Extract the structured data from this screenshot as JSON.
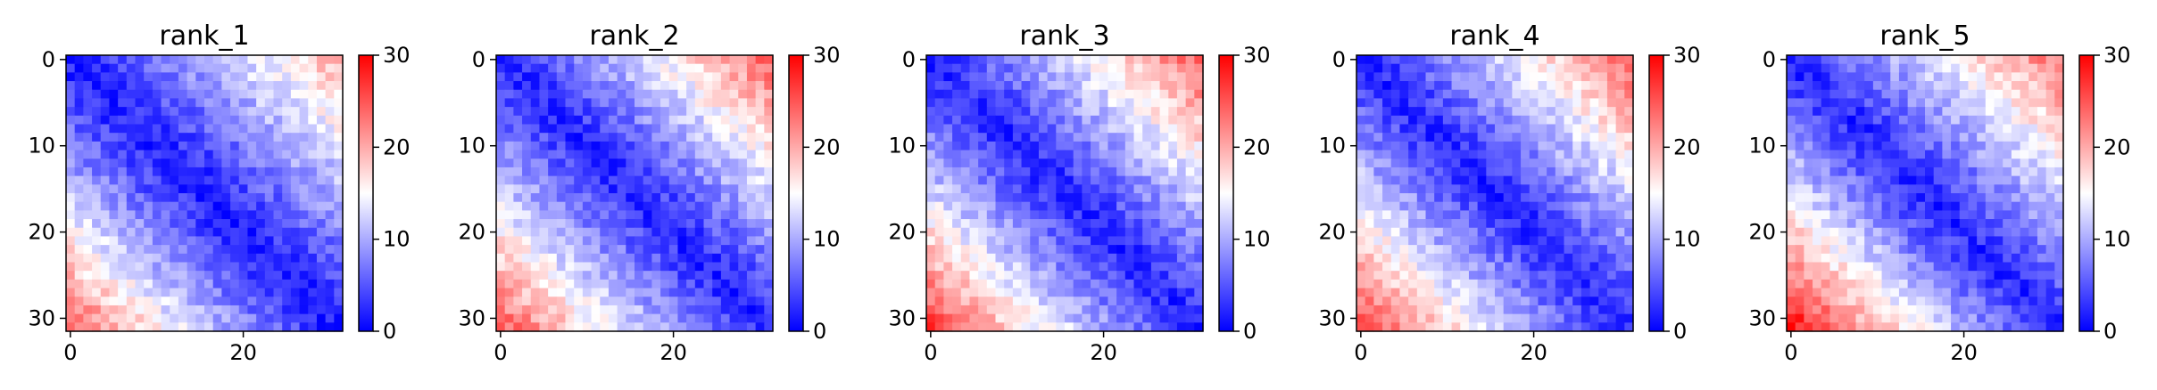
{
  "chart_data": [
    {
      "type": "heatmap",
      "title": "rank_1",
      "xlabel": "",
      "ylabel": "",
      "matrix_size": 32,
      "x_ticks": [
        "0",
        "20"
      ],
      "y_ticks": [
        "0",
        "10",
        "20",
        "30"
      ],
      "colorbar": {
        "min": 0,
        "max": 30,
        "ticks": [
          "0",
          "10",
          "20",
          "30"
        ],
        "colormap": "bwr"
      },
      "pattern": {
        "diag_base": 1.5,
        "slope": 0.55,
        "curve": 0.0,
        "lower_left_boost": 6,
        "upper_right_boost": 1,
        "seed": 11
      }
    },
    {
      "type": "heatmap",
      "title": "rank_2",
      "xlabel": "",
      "ylabel": "",
      "matrix_size": 32,
      "x_ticks": [
        "0",
        "20"
      ],
      "y_ticks": [
        "0",
        "10",
        "20",
        "30"
      ],
      "colorbar": {
        "min": 0,
        "max": 30,
        "ticks": [
          "0",
          "10",
          "20",
          "30"
        ],
        "colormap": "bwr"
      },
      "pattern": {
        "diag_base": 2.0,
        "slope": 0.6,
        "curve": 0.0,
        "lower_left_boost": 4,
        "upper_right_boost": 4,
        "seed": 23
      }
    },
    {
      "type": "heatmap",
      "title": "rank_3",
      "xlabel": "",
      "ylabel": "",
      "matrix_size": 32,
      "x_ticks": [
        "0",
        "20"
      ],
      "y_ticks": [
        "0",
        "10",
        "20",
        "30"
      ],
      "colorbar": {
        "min": 0,
        "max": 30,
        "ticks": [
          "0",
          "10",
          "20",
          "30"
        ],
        "colormap": "bwr"
      },
      "pattern": {
        "diag_base": 2.0,
        "slope": 0.62,
        "curve": 0.0,
        "lower_left_boost": 5,
        "upper_right_boost": 3,
        "seed": 37
      }
    },
    {
      "type": "heatmap",
      "title": "rank_4",
      "xlabel": "",
      "ylabel": "",
      "matrix_size": 32,
      "x_ticks": [
        "0",
        "20"
      ],
      "y_ticks": [
        "0",
        "10",
        "20",
        "30"
      ],
      "colorbar": {
        "min": 0,
        "max": 30,
        "ticks": [
          "0",
          "10",
          "20",
          "30"
        ],
        "colormap": "bwr"
      },
      "pattern": {
        "diag_base": 2.0,
        "slope": 0.62,
        "curve": 0.0,
        "lower_left_boost": 5,
        "upper_right_boost": 3,
        "seed": 53
      }
    },
    {
      "type": "heatmap",
      "title": "rank_5",
      "xlabel": "",
      "ylabel": "",
      "matrix_size": 32,
      "x_ticks": [
        "0",
        "20"
      ],
      "y_ticks": [
        "0",
        "10",
        "20",
        "30"
      ],
      "colorbar": {
        "min": 0,
        "max": 30,
        "ticks": [
          "0",
          "10",
          "20",
          "30"
        ],
        "colormap": "bwr"
      },
      "pattern": {
        "diag_base": 2.0,
        "slope": 0.65,
        "curve": 0.0,
        "lower_left_boost": 7,
        "upper_right_boost": 1,
        "seed": 71
      }
    }
  ]
}
